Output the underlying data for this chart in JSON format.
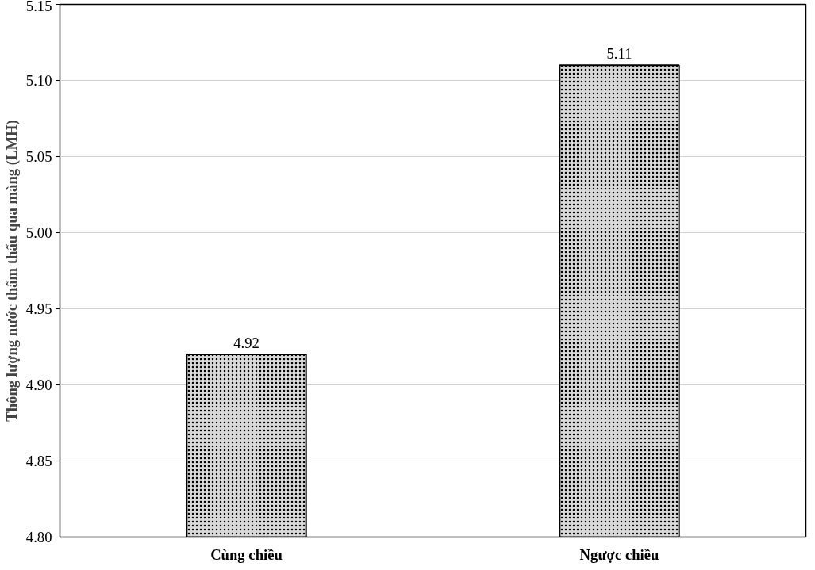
{
  "chart_data": {
    "type": "bar",
    "ylabel": "Thông lượng nước thẩm thấu qua màng (LMH)",
    "categories": [
      "Cùng chiều",
      "Ngược chiều"
    ],
    "values": [
      4.92,
      5.11
    ],
    "color": "#d9d9d9",
    "ylim": [
      4.8,
      5.15
    ],
    "yticks": [
      {
        "value": 4.8,
        "label": "4.80"
      },
      {
        "value": 4.85,
        "label": "4.85"
      },
      {
        "value": 4.9,
        "label": "4.90"
      },
      {
        "value": 4.95,
        "label": "4.95"
      },
      {
        "value": 5.0,
        "label": "5.00"
      },
      {
        "value": 5.05,
        "label": "5.05"
      },
      {
        "value": 5.1,
        "label": "5.10"
      },
      {
        "value": 5.15,
        "label": "5.15"
      }
    ],
    "grid": "y",
    "data_labels": true
  }
}
